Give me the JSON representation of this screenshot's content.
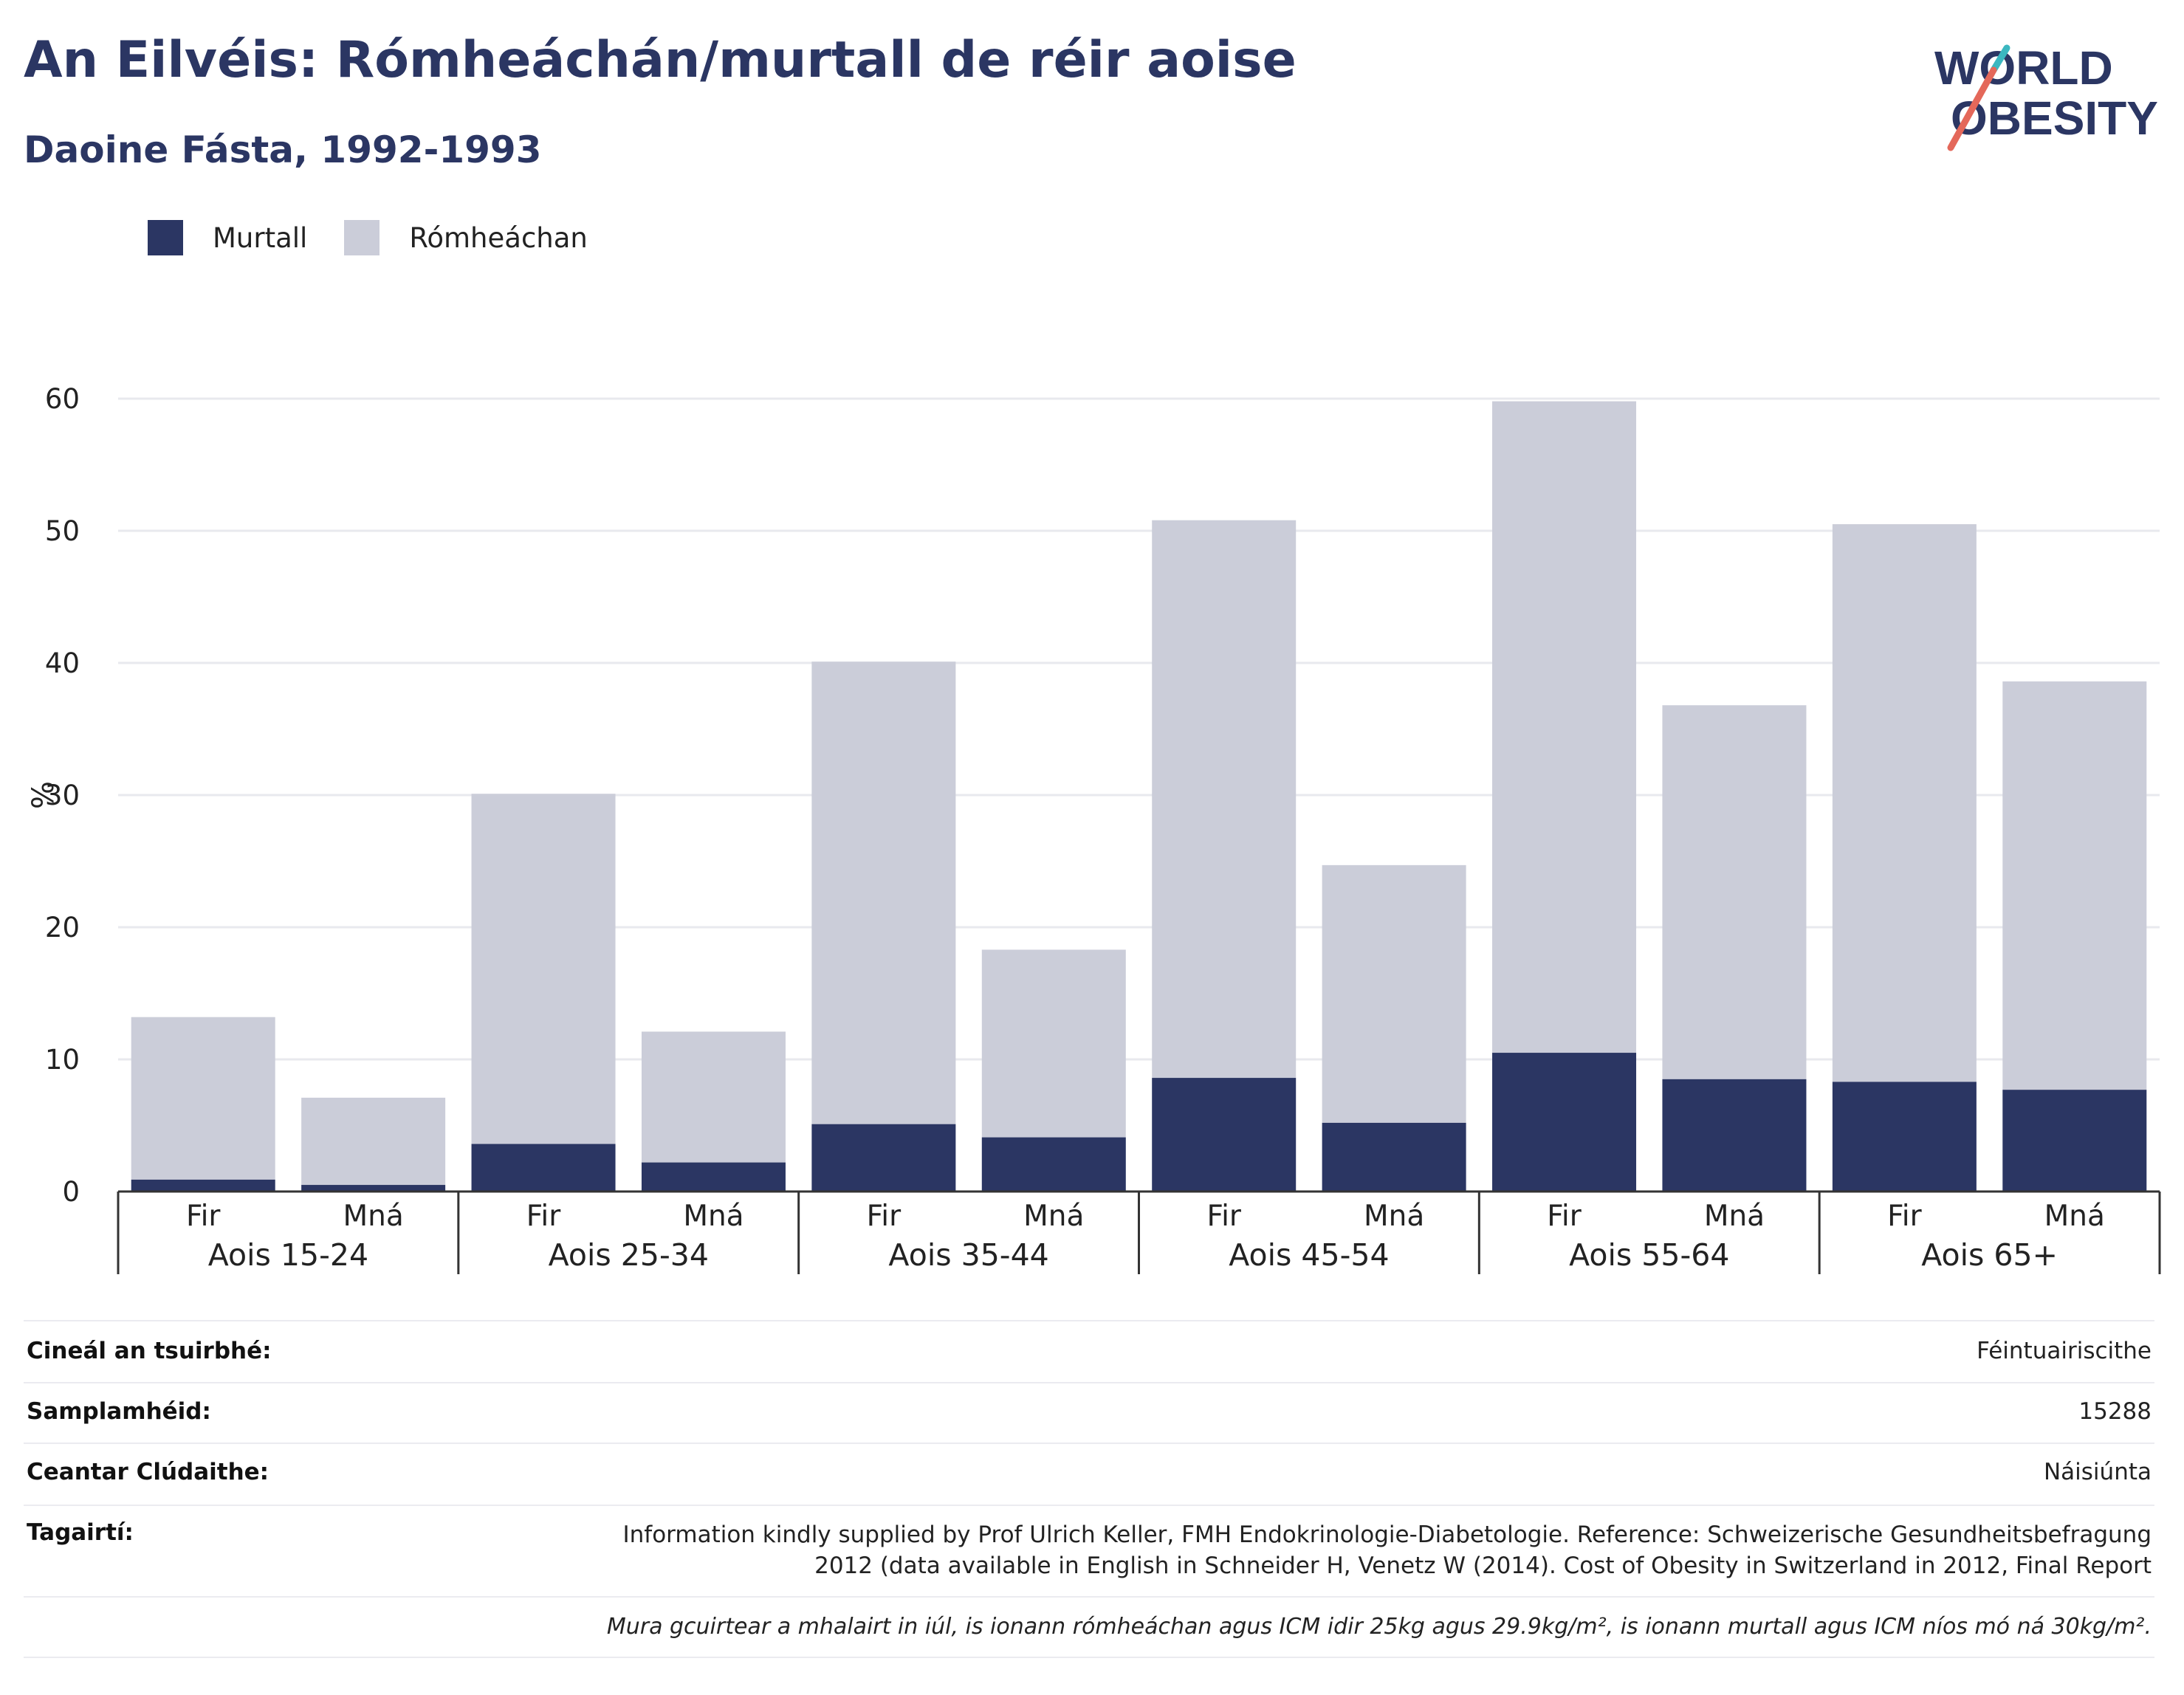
{
  "header": {
    "title": "An Eilvéis: Rómheáchán/murtall de réir aoise",
    "subtitle": "Daoine Fásta, 1992-1993"
  },
  "logo": {
    "line1": "WORLD",
    "line2": "OBESITY"
  },
  "legend": {
    "obese_label": "Murtall",
    "overweight_label": "Rómheáchan"
  },
  "colors": {
    "obese": "#2b3663",
    "overweight": "#cbcdd9",
    "axis": "#333333",
    "grid": "#e8e9ee",
    "logo_teal": "#3bb7c0",
    "logo_red": "#e4685a"
  },
  "chart_data": {
    "type": "bar",
    "stacked": true,
    "ylabel": "%",
    "ylim": [
      0,
      60
    ],
    "yticks": [
      0,
      10,
      20,
      30,
      40,
      50,
      60
    ],
    "grid": true,
    "legend_position": "top-left",
    "groups": [
      "Aois 15-24",
      "Aois 25-34",
      "Aois 35-44",
      "Aois 45-54",
      "Aois 55-64",
      "Aois 65+"
    ],
    "subcategories": [
      "Fir",
      "Mná"
    ],
    "categories": [
      "Fir",
      "Mná",
      "Fir",
      "Mná",
      "Fir",
      "Mná",
      "Fir",
      "Mná",
      "Fir",
      "Mná",
      "Fir",
      "Mná"
    ],
    "series": [
      {
        "name": "Murtall",
        "values": [
          0.9,
          0.5,
          3.6,
          2.2,
          5.1,
          4.1,
          8.6,
          5.2,
          10.5,
          8.5,
          8.3,
          7.7
        ]
      },
      {
        "name": "Rómheáchan",
        "values": [
          12.3,
          6.6,
          26.5,
          9.9,
          35.0,
          14.2,
          42.2,
          19.5,
          49.3,
          28.3,
          42.2,
          30.9
        ]
      }
    ]
  },
  "meta": {
    "rows": [
      {
        "key": "Cineál an tsuirbhé:",
        "value": "Féintuairiscithe"
      },
      {
        "key": "Samplamhéid:",
        "value": "15288"
      },
      {
        "key": "Ceantar Clúdaithe:",
        "value": "Náisiúnta"
      },
      {
        "key": "Tagairtí:",
        "value": "Information kindly supplied by Prof Ulrich Keller, FMH Endokrinologie-Diabetologie. Reference: Schweizerische Gesundheitsbefragung 2012 (data available in English in Schneider H, Venetz W (2014). Cost of Obesity in Switzerland in 2012, Final Report"
      }
    ],
    "note": "Mura gcuirtear a mhalairt in iúl, is ionann rómheáchan agus ICM idir 25kg agus 29.9kg/m², is ionann murtall agus ICM níos mó ná 30kg/m²."
  }
}
